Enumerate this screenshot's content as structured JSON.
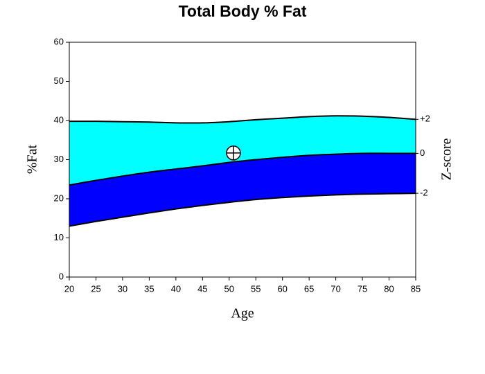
{
  "chart_data": {
    "type": "band",
    "title": "Total Body % Fat",
    "x_label": "Age",
    "y_label": "%Fat",
    "y2_label": "Z-score",
    "x": [
      20,
      25,
      30,
      35,
      40,
      45,
      50,
      55,
      60,
      65,
      70,
      75,
      80,
      85
    ],
    "series": [
      {
        "name": "+2",
        "color": "#000000",
        "fill": "#00ffff",
        "values": [
          39.8,
          39.8,
          39.7,
          39.6,
          39.4,
          39.4,
          39.7,
          40.2,
          40.6,
          41.0,
          41.2,
          41.1,
          40.8,
          40.3
        ]
      },
      {
        "name": "0",
        "color": "#000000",
        "fill": "#0000ff",
        "values": [
          23.5,
          24.7,
          25.8,
          26.8,
          27.6,
          28.4,
          29.3,
          30.0,
          30.6,
          31.1,
          31.4,
          31.6,
          31.6,
          31.6
        ]
      },
      {
        "name": "-2",
        "color": "#000000",
        "values": [
          13.0,
          14.2,
          15.3,
          16.4,
          17.4,
          18.3,
          19.1,
          19.8,
          20.3,
          20.7,
          21.0,
          21.2,
          21.3,
          21.4
        ]
      }
    ],
    "point": {
      "x": 50.8,
      "y": 31.7
    },
    "xlim": [
      20,
      85
    ],
    "xticks": [
      20,
      25,
      30,
      35,
      40,
      45,
      50,
      55,
      60,
      65,
      70,
      75,
      80,
      85
    ],
    "ylim": [
      0,
      60
    ],
    "yticks": [
      0,
      10,
      20,
      30,
      40,
      50,
      60
    ]
  }
}
